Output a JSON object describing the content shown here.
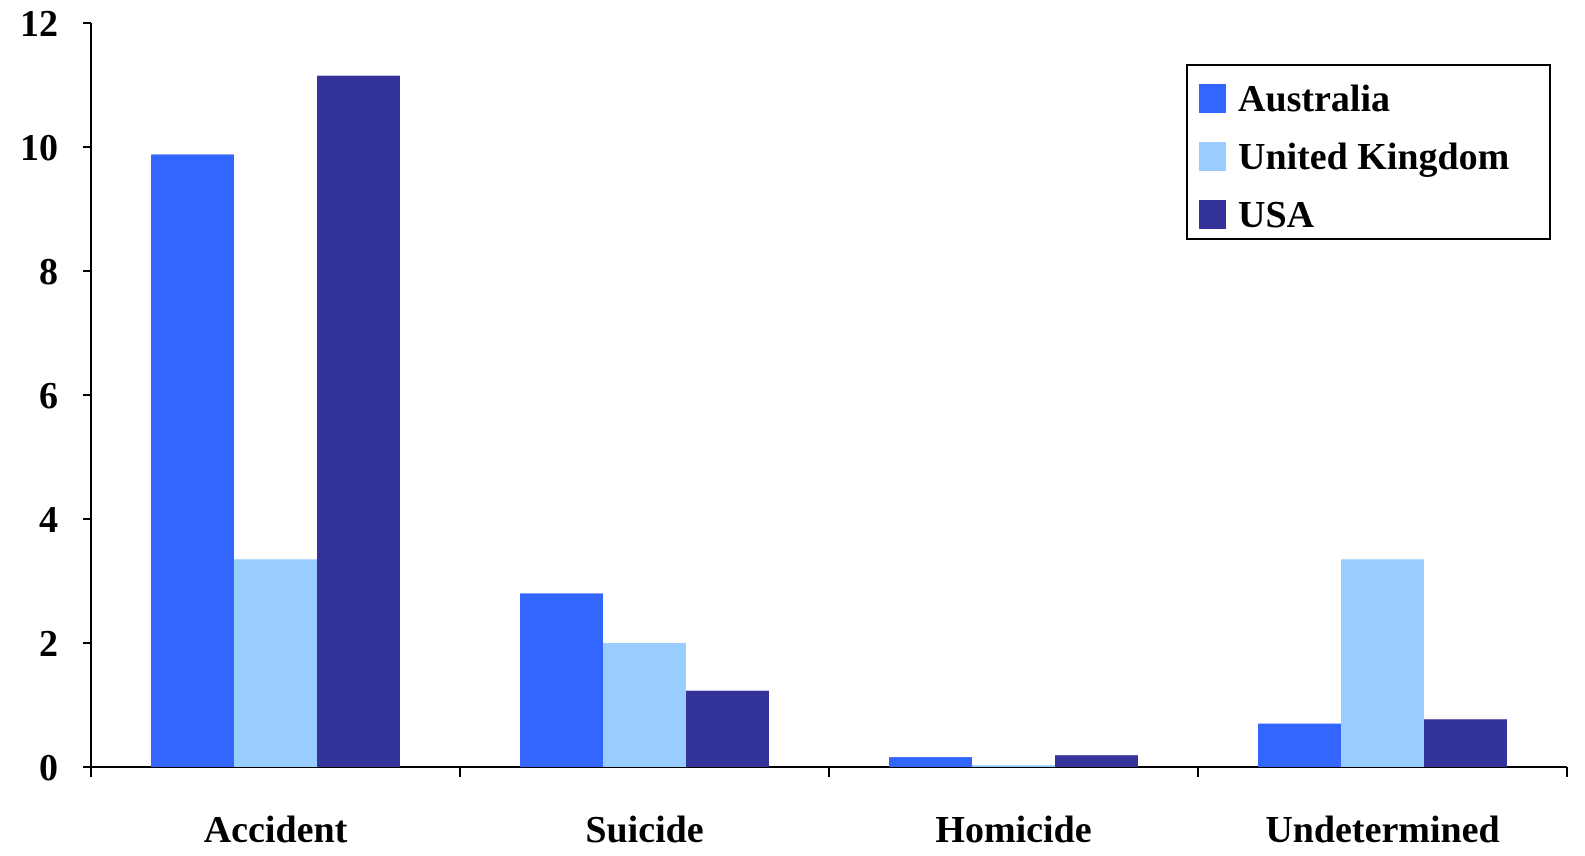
{
  "chart_data": {
    "type": "bar",
    "title": "",
    "xlabel": "",
    "ylabel": "",
    "categories": [
      "Accident",
      "Suicide",
      "Homicide",
      "Undetermined"
    ],
    "series": [
      {
        "name": "Australia",
        "color": "#3366FF",
        "values": [
          9.88,
          2.8,
          0.16,
          0.7
        ]
      },
      {
        "name": "United Kingdom",
        "color": "#99CCFF",
        "values": [
          3.35,
          2.0,
          0.03,
          3.35
        ]
      },
      {
        "name": "USA",
        "color": "#333399",
        "values": [
          11.15,
          1.23,
          0.19,
          0.77
        ]
      }
    ],
    "ylim": [
      0,
      12
    ],
    "yticks": [
      "0",
      "2",
      "4",
      "6",
      "8",
      "10",
      "12"
    ],
    "grid": false,
    "legend_position": "top-right"
  }
}
